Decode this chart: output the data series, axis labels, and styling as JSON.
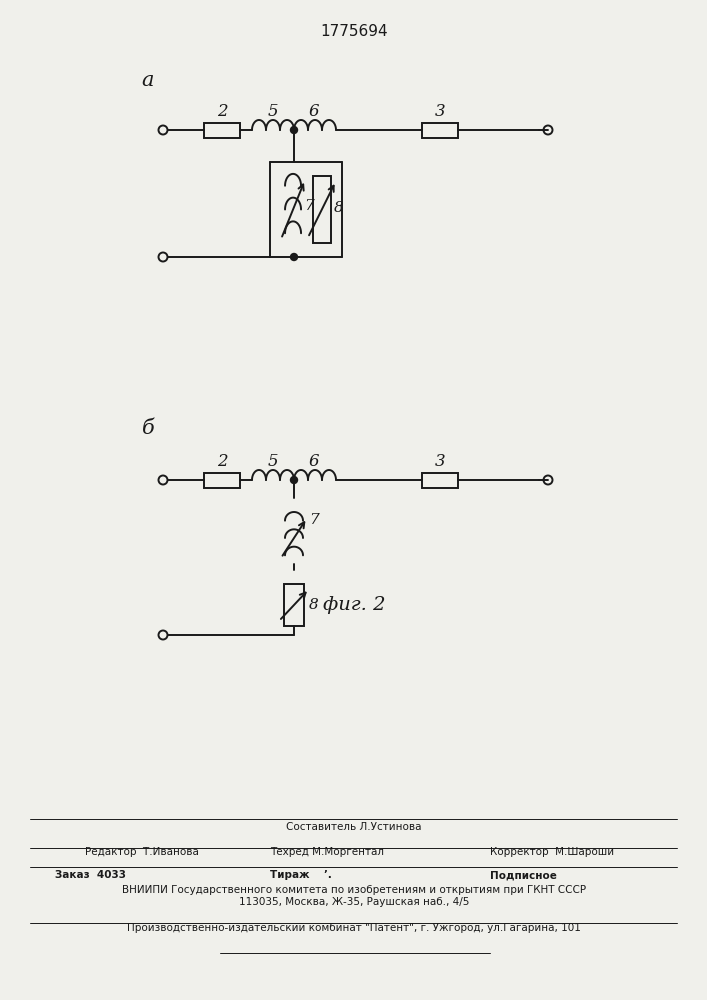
{
  "title": "1775694",
  "fig_label": "фиг. 2",
  "label_a": "а",
  "label_b": "б",
  "bg_color": "#f0f0eb",
  "line_color": "#1a1a1a",
  "lw": 1.4
}
